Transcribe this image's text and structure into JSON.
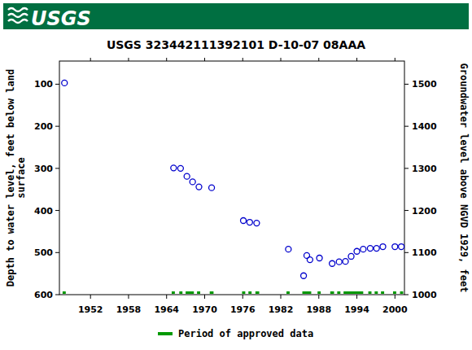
{
  "header": {
    "logo_text": "USGS"
  },
  "chart_data": {
    "type": "scatter",
    "title": "USGS 323442111392101 D-10-07 08AAA",
    "y_label": [
      "Depth to water level, feet below land",
      "surface"
    ],
    "y2_label": "Groundwater level above NGVD 1929, feet",
    "x": [
      1947.9,
      1965.1,
      1966.2,
      1967.2,
      1968.1,
      1969.1,
      1971.1,
      1976.1,
      1977.1,
      1978.2,
      1983.2,
      1985.6,
      1986.1,
      1986.6,
      1988.1,
      1990.1,
      1991.2,
      1992.2,
      1993.1,
      1994.0,
      1995.0,
      1996.1,
      1997.1,
      1998.1,
      2000.0,
      2001.0
    ],
    "values": [
      97,
      299,
      300,
      319,
      332,
      344,
      346,
      424,
      428,
      430,
      492,
      555,
      507,
      517,
      513,
      526,
      522,
      521,
      509,
      497,
      492,
      490,
      490,
      486,
      486,
      486
    ],
    "color": "#0000cc",
    "marker": "circle-open",
    "xlim": [
      1947.1,
      2001.5
    ],
    "xticks": [
      1952,
      1958,
      1964,
      1970,
      1976,
      1982,
      1988,
      1994,
      2000
    ],
    "ylim": [
      600,
      45
    ],
    "yticks": [
      100,
      200,
      300,
      400,
      500,
      600
    ],
    "y2lim": [
      1000,
      1555
    ],
    "y2ticks": [
      1000,
      1100,
      1200,
      1300,
      1400,
      1500
    ],
    "grid": false,
    "legend": "bottom",
    "approved": {
      "name": "Period of approved data",
      "color": "#009900",
      "periods": [
        [
          1947.6,
          1948.1
        ],
        [
          1964.8,
          1965.3
        ],
        [
          1966.0,
          1966.5
        ],
        [
          1967.0,
          1968.3
        ],
        [
          1968.8,
          1969.3
        ],
        [
          1970.8,
          1971.4
        ],
        [
          1975.9,
          1976.4
        ],
        [
          1976.9,
          1977.4
        ],
        [
          1978.0,
          1978.6
        ],
        [
          1982.9,
          1983.4
        ],
        [
          1985.4,
          1986.8
        ],
        [
          1987.8,
          1988.3
        ],
        [
          1989.8,
          1990.4
        ],
        [
          1990.9,
          1991.4
        ],
        [
          1991.9,
          1995.0
        ],
        [
          1995.8,
          1996.3
        ],
        [
          1996.8,
          1997.3
        ],
        [
          1997.8,
          1998.3
        ],
        [
          1999.7,
          2000.2
        ],
        [
          2000.8,
          2001.3
        ]
      ]
    }
  }
}
